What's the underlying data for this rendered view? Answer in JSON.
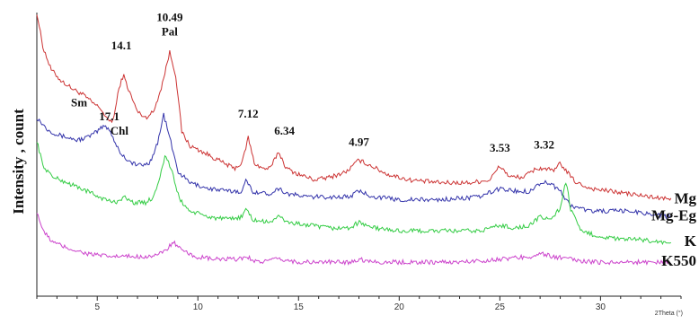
{
  "chart_data": {
    "type": "line",
    "title": "",
    "xlabel": "2Theta (°)",
    "ylabel": "Intensity , count",
    "xlim": [
      2,
      34
    ],
    "ylim": [
      0,
      100
    ],
    "xticks": [
      5,
      10,
      15,
      20,
      25,
      30
    ],
    "grid": false,
    "legend": "series labels at right end of each trace",
    "series": [
      {
        "name": "Mg",
        "color": "#cc3333",
        "points": [
          [
            2.0,
            100
          ],
          [
            2.3,
            88
          ],
          [
            2.7,
            80
          ],
          [
            3.2,
            76
          ],
          [
            3.8,
            73
          ],
          [
            4.3,
            71
          ],
          [
            4.8,
            68
          ],
          [
            5.2,
            66
          ],
          [
            5.5,
            62
          ],
          [
            5.8,
            62
          ],
          [
            6.1,
            74
          ],
          [
            6.3,
            78
          ],
          [
            6.6,
            72
          ],
          [
            7.0,
            65
          ],
          [
            7.4,
            63
          ],
          [
            7.8,
            65
          ],
          [
            8.2,
            74
          ],
          [
            8.6,
            86
          ],
          [
            8.9,
            78
          ],
          [
            9.2,
            58
          ],
          [
            9.6,
            53
          ],
          [
            10.2,
            51
          ],
          [
            11.0,
            48
          ],
          [
            11.8,
            45
          ],
          [
            12.2,
            47
          ],
          [
            12.5,
            56
          ],
          [
            12.8,
            47
          ],
          [
            13.2,
            45
          ],
          [
            13.6,
            45
          ],
          [
            14.0,
            51
          ],
          [
            14.4,
            45
          ],
          [
            15.0,
            43
          ],
          [
            15.8,
            41
          ],
          [
            16.6,
            42
          ],
          [
            17.4,
            44
          ],
          [
            18.0,
            48
          ],
          [
            18.6,
            46
          ],
          [
            19.4,
            43
          ],
          [
            20.5,
            41
          ],
          [
            22.0,
            40
          ],
          [
            23.5,
            40
          ],
          [
            24.5,
            41
          ],
          [
            25.0,
            46
          ],
          [
            25.5,
            42
          ],
          [
            26.2,
            42
          ],
          [
            26.8,
            45
          ],
          [
            27.3,
            45
          ],
          [
            27.7,
            44
          ],
          [
            28.0,
            47
          ],
          [
            28.3,
            44
          ],
          [
            28.8,
            40
          ],
          [
            29.5,
            38
          ],
          [
            30.5,
            37
          ],
          [
            31.5,
            36
          ],
          [
            32.5,
            35
          ],
          [
            33.5,
            34
          ]
        ]
      },
      {
        "name": "Mg-Eg",
        "color": "#3333aa",
        "points": [
          [
            2.0,
            63
          ],
          [
            2.5,
            59
          ],
          [
            3.0,
            57
          ],
          [
            3.5,
            56
          ],
          [
            4.0,
            55
          ],
          [
            4.5,
            56
          ],
          [
            5.0,
            58
          ],
          [
            5.3,
            60
          ],
          [
            5.6,
            59
          ],
          [
            5.9,
            54
          ],
          [
            6.2,
            50
          ],
          [
            6.7,
            47
          ],
          [
            7.2,
            46
          ],
          [
            7.6,
            47
          ],
          [
            8.0,
            54
          ],
          [
            8.3,
            64
          ],
          [
            8.6,
            56
          ],
          [
            9.0,
            44
          ],
          [
            9.6,
            40
          ],
          [
            10.5,
            38
          ],
          [
            11.5,
            37
          ],
          [
            12.2,
            37
          ],
          [
            12.4,
            41
          ],
          [
            12.7,
            37
          ],
          [
            13.5,
            36
          ],
          [
            14.0,
            38
          ],
          [
            14.5,
            36
          ],
          [
            15.5,
            35
          ],
          [
            16.5,
            35
          ],
          [
            17.5,
            35
          ],
          [
            18.0,
            37
          ],
          [
            18.8,
            35
          ],
          [
            20.0,
            34
          ],
          [
            22.0,
            34
          ],
          [
            24.0,
            35
          ],
          [
            25.0,
            38
          ],
          [
            25.8,
            37
          ],
          [
            26.5,
            37
          ],
          [
            27.0,
            40
          ],
          [
            27.5,
            40
          ],
          [
            28.0,
            37
          ],
          [
            28.5,
            32
          ],
          [
            29.5,
            30
          ],
          [
            30.5,
            30
          ],
          [
            31.5,
            30
          ],
          [
            32.5,
            29
          ],
          [
            33.5,
            28
          ]
        ]
      },
      {
        "name": "K",
        "color": "#33cc44",
        "points": [
          [
            2.0,
            55
          ],
          [
            2.3,
            46
          ],
          [
            2.8,
            42
          ],
          [
            3.5,
            40
          ],
          [
            4.2,
            38
          ],
          [
            4.8,
            36
          ],
          [
            5.4,
            34
          ],
          [
            5.9,
            33
          ],
          [
            6.3,
            35
          ],
          [
            6.8,
            33
          ],
          [
            7.4,
            33
          ],
          [
            7.8,
            35
          ],
          [
            8.1,
            42
          ],
          [
            8.4,
            50
          ],
          [
            8.7,
            44
          ],
          [
            9.1,
            34
          ],
          [
            9.6,
            30
          ],
          [
            10.5,
            28
          ],
          [
            11.5,
            27
          ],
          [
            12.2,
            28
          ],
          [
            12.4,
            31
          ],
          [
            12.7,
            27
          ],
          [
            13.5,
            26
          ],
          [
            14.0,
            28
          ],
          [
            14.5,
            26
          ],
          [
            15.5,
            25
          ],
          [
            16.5,
            24
          ],
          [
            17.5,
            24
          ],
          [
            18.0,
            26
          ],
          [
            18.8,
            24
          ],
          [
            20.0,
            23
          ],
          [
            22.0,
            23
          ],
          [
            24.0,
            23
          ],
          [
            25.0,
            25
          ],
          [
            25.8,
            24
          ],
          [
            26.5,
            25
          ],
          [
            27.0,
            28
          ],
          [
            27.5,
            27
          ],
          [
            28.0,
            31
          ],
          [
            28.3,
            41
          ],
          [
            28.5,
            31
          ],
          [
            29.0,
            23
          ],
          [
            30.0,
            21
          ],
          [
            31.0,
            20
          ],
          [
            32.0,
            20
          ],
          [
            33.0,
            19
          ],
          [
            33.5,
            19
          ]
        ]
      },
      {
        "name": "K550",
        "color": "#cc44cc",
        "points": [
          [
            2.0,
            30
          ],
          [
            2.3,
            23
          ],
          [
            2.8,
            19
          ],
          [
            3.5,
            17
          ],
          [
            4.5,
            15
          ],
          [
            5.5,
            14
          ],
          [
            6.5,
            14
          ],
          [
            7.5,
            14
          ],
          [
            8.2,
            15
          ],
          [
            8.8,
            19
          ],
          [
            9.2,
            16
          ],
          [
            9.8,
            14
          ],
          [
            10.8,
            13
          ],
          [
            12.0,
            13
          ],
          [
            12.4,
            14
          ],
          [
            13.0,
            12
          ],
          [
            14.0,
            13
          ],
          [
            15.0,
            12
          ],
          [
            16.0,
            12
          ],
          [
            17.5,
            12
          ],
          [
            18.0,
            13
          ],
          [
            19.0,
            12
          ],
          [
            21.0,
            12
          ],
          [
            23.0,
            12
          ],
          [
            25.0,
            13
          ],
          [
            26.5,
            14
          ],
          [
            27.0,
            15
          ],
          [
            27.6,
            14
          ],
          [
            28.5,
            13
          ],
          [
            29.5,
            12
          ],
          [
            30.5,
            12
          ],
          [
            31.5,
            12
          ],
          [
            32.5,
            12
          ],
          [
            33.5,
            12
          ]
        ]
      }
    ],
    "annotations": [
      {
        "text": "14.1",
        "x": 6.2,
        "y": 87
      },
      {
        "text": "10.49",
        "x": 8.6,
        "y": 97
      },
      {
        "text": "Pal",
        "x": 8.6,
        "y": 92
      },
      {
        "text": "Sm",
        "x": 4.1,
        "y": 67
      },
      {
        "text": "17.1",
        "x": 5.6,
        "y": 62
      },
      {
        "text": "Chl",
        "x": 6.1,
        "y": 57
      },
      {
        "text": "7.12",
        "x": 12.5,
        "y": 63
      },
      {
        "text": "6.34",
        "x": 14.3,
        "y": 57
      },
      {
        "text": "4.97",
        "x": 18.0,
        "y": 53
      },
      {
        "text": "3.53",
        "x": 25.0,
        "y": 51
      },
      {
        "text": "3.32",
        "x": 27.2,
        "y": 52
      }
    ]
  }
}
